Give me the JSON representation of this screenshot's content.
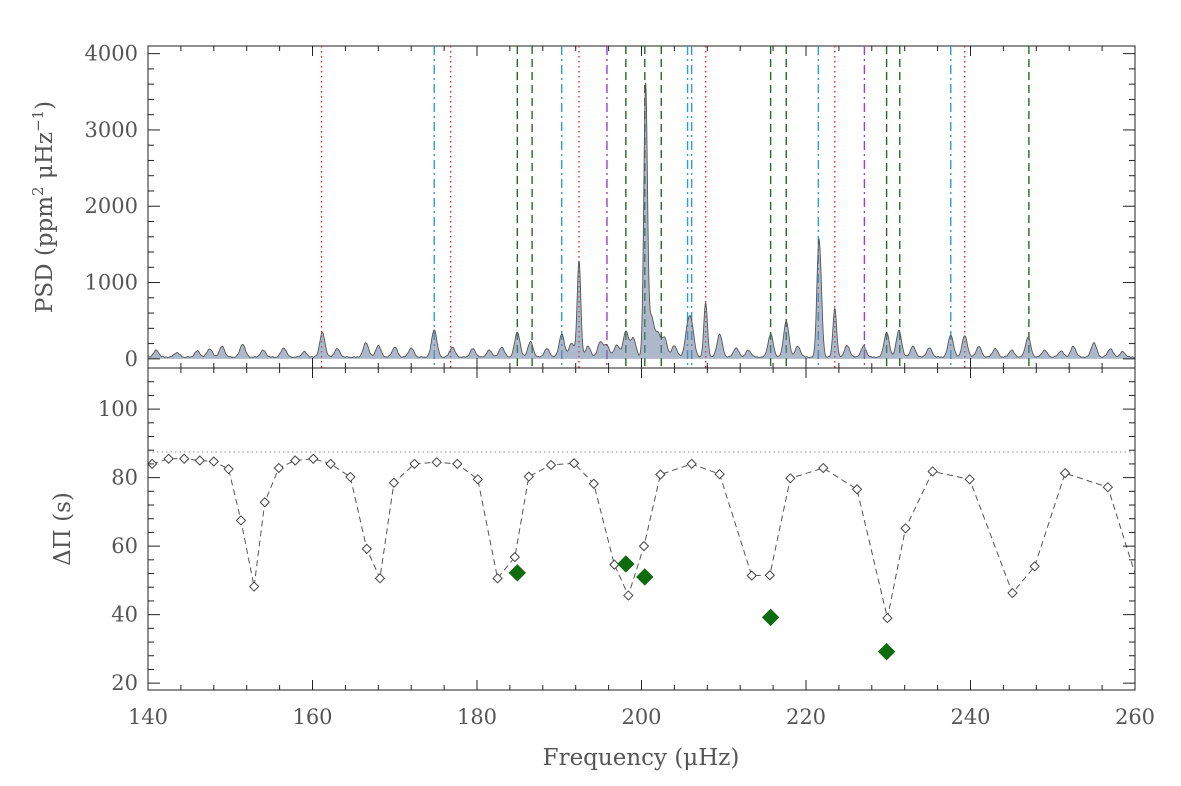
{
  "chart_data": [
    {
      "type": "line",
      "panel": "top",
      "ylabel": "PSD (ppm² μHz⁻¹)",
      "xlabel": "",
      "xlim": [
        140,
        260
      ],
      "ylim": [
        -120,
        4100
      ],
      "yticks": [
        0,
        1000,
        2000,
        3000,
        4000
      ],
      "xticks": [
        140,
        160,
        180,
        200,
        220,
        240,
        260
      ],
      "grid": false,
      "colors": {
        "spectrum": "#555555",
        "red": "#e8262b",
        "blue": "#2f9bd9",
        "green": "#1f6e1f",
        "purple": "#9b3fd1",
        "peak_fill": "#6a7fa0"
      },
      "peaks": [
        [
          141.0,
          90
        ],
        [
          143.5,
          60
        ],
        [
          146.0,
          80
        ],
        [
          147.5,
          110
        ],
        [
          149.0,
          140
        ],
        [
          151.5,
          170
        ],
        [
          154.0,
          90
        ],
        [
          156.5,
          120
        ],
        [
          159.0,
          70
        ],
        [
          161.2,
          320
        ],
        [
          163.0,
          110
        ],
        [
          166.5,
          190
        ],
        [
          168.0,
          150
        ],
        [
          170.0,
          130
        ],
        [
          172.0,
          120
        ],
        [
          174.8,
          360
        ],
        [
          177.0,
          130
        ],
        [
          179.5,
          110
        ],
        [
          181.5,
          90
        ],
        [
          183.0,
          130
        ],
        [
          184.9,
          330
        ],
        [
          186.5,
          200
        ],
        [
          188.5,
          110
        ],
        [
          190.3,
          300
        ],
        [
          191.5,
          180
        ],
        [
          192.4,
          1260
        ],
        [
          193.5,
          140
        ],
        [
          195.0,
          200
        ],
        [
          195.8,
          150
        ],
        [
          197.0,
          160
        ],
        [
          198.1,
          340
        ],
        [
          199.0,
          250
        ],
        [
          200.5,
          3550
        ],
        [
          201.2,
          520
        ],
        [
          202.0,
          300
        ],
        [
          202.8,
          250
        ],
        [
          204.0,
          150
        ],
        [
          205.6,
          350
        ],
        [
          206.1,
          380
        ],
        [
          207.8,
          710
        ],
        [
          209.5,
          300
        ],
        [
          211.5,
          120
        ],
        [
          213.0,
          90
        ],
        [
          215.7,
          300
        ],
        [
          217.6,
          470
        ],
        [
          219.0,
          140
        ],
        [
          221.5,
          1200
        ],
        [
          221.8,
          700
        ],
        [
          223.5,
          640
        ],
        [
          225.0,
          150
        ],
        [
          227.0,
          140
        ],
        [
          229.8,
          320
        ],
        [
          231.3,
          350
        ],
        [
          233.0,
          140
        ],
        [
          235.0,
          120
        ],
        [
          237.6,
          290
        ],
        [
          239.3,
          280
        ],
        [
          241.0,
          140
        ],
        [
          243.0,
          110
        ],
        [
          245.0,
          90
        ],
        [
          247.0,
          260
        ],
        [
          249.0,
          90
        ],
        [
          251.0,
          80
        ],
        [
          252.5,
          140
        ],
        [
          255.0,
          190
        ],
        [
          257.0,
          110
        ],
        [
          258.5,
          70
        ]
      ],
      "vlines": [
        {
          "style": "dotted",
          "color": "red",
          "x": [
            161.1,
            176.8,
            192.4,
            207.8,
            223.5,
            239.3
          ]
        },
        {
          "style": "dashdot",
          "color": "blue",
          "x": [
            174.8,
            190.3,
            205.6,
            206.1,
            221.5,
            237.6
          ]
        },
        {
          "style": "dashed",
          "color": "green",
          "x": [
            184.9,
            186.7,
            198.1,
            200.4,
            202.4,
            215.7,
            217.6,
            229.8,
            231.4,
            247.1
          ]
        },
        {
          "style": "dashdot",
          "color": "purple",
          "x": [
            195.8,
            227.1
          ]
        }
      ]
    },
    {
      "type": "scatter",
      "panel": "bottom",
      "xlabel": "Frequency (μHz)",
      "ylabel": "ΔΠ (s)",
      "xlim": [
        140,
        260
      ],
      "ylim": [
        18,
        112
      ],
      "yticks": [
        20,
        40,
        60,
        80,
        100
      ],
      "xticks": [
        140,
        160,
        180,
        200,
        220,
        240,
        260
      ],
      "grid": false,
      "reference_line": 87.5,
      "series": [
        {
          "marker": "open-diamond",
          "line": "dashed",
          "color": "#555555",
          "x": [
            140.5,
            142.5,
            144.4,
            146.3,
            148.0,
            149.8,
            151.3,
            152.9,
            154.2,
            155.9,
            157.9,
            160.1,
            162.2,
            164.6,
            166.6,
            168.2,
            169.9,
            172.4,
            175.1,
            177.6,
            180.1,
            182.5,
            184.6,
            186.3,
            189.0,
            191.8,
            194.2,
            196.7,
            198.4,
            200.3,
            202.3,
            206.1,
            209.5,
            213.4,
            215.6,
            218.1,
            222.1,
            226.2,
            229.9,
            232.1,
            235.4,
            239.9,
            245.1,
            247.8,
            251.5,
            256.7,
            260.0
          ],
          "y": [
            84,
            85.5,
            85.5,
            85,
            84.7,
            82.5,
            67.5,
            48.2,
            72.8,
            82.8,
            85,
            85.5,
            84,
            80.2,
            59.2,
            50.6,
            78.5,
            84,
            84.5,
            84,
            79.5,
            50.6,
            56.8,
            80.3,
            83.7,
            84.2,
            78.2,
            54.6,
            45.6,
            60,
            80.9,
            84,
            81,
            51.4,
            51.5,
            79.8,
            82.8,
            76.6,
            39,
            65.2,
            81.8,
            79.5,
            46.3,
            54.1,
            81.3,
            77.2,
            52
          ]
        },
        {
          "marker": "filled-diamond",
          "color": "#0e6b0e",
          "x": [
            184.9,
            198.1,
            200.4,
            215.7,
            229.8
          ],
          "y": [
            52.2,
            54.8,
            51.0,
            39.2,
            29.2
          ]
        }
      ]
    }
  ],
  "labels": {
    "top_ylabel_prefix": "PSD (ppm",
    "top_ylabel_sup1": "2",
    "top_ylabel_mid": " μHz",
    "top_ylabel_sup2": "−1",
    "top_ylabel_suffix": ")",
    "bottom_ylabel": "ΔΠ (s)",
    "xlabel": "Frequency (μHz)"
  }
}
